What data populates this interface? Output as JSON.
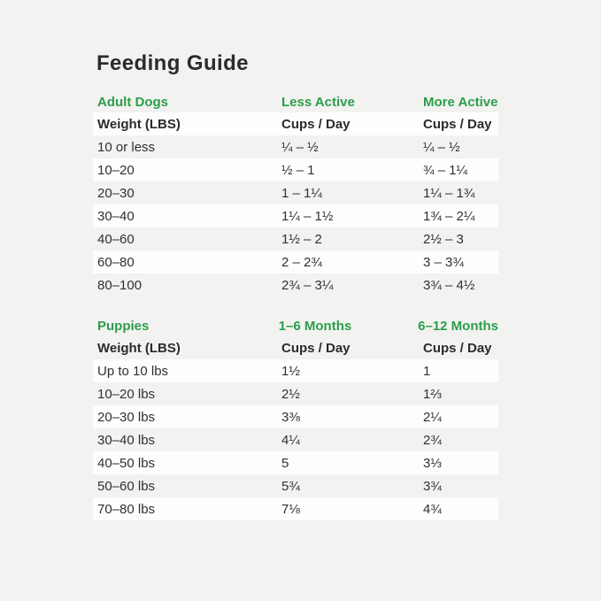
{
  "page": {
    "title": "Feeding Guide",
    "background_color": "#f2f2f1",
    "row_highlight_color": "#fdfdfd",
    "accent_green": "#2c9d4a",
    "text_color": "#303030"
  },
  "tables": [
    {
      "id": "adult-dogs",
      "section_headers": [
        "Adult Dogs",
        "Less Active",
        "More Active"
      ],
      "column_headers": [
        "Weight (LBS)",
        "Cups / Day",
        "Cups / Day"
      ],
      "header_row_white": true,
      "rows": [
        [
          "10 or less",
          "¼ – ½",
          "¼ – ½"
        ],
        [
          "10–20",
          "½ – 1",
          "¾ – 1¼"
        ],
        [
          "20–30",
          "1 – 1¼",
          "1¼ – 1¾"
        ],
        [
          "30–40",
          "1¼ – 1½",
          "1¾ – 2¼"
        ],
        [
          "40–60",
          "1½ – 2",
          "2½ – 3"
        ],
        [
          "60–80",
          "2 – 2¾",
          "3 – 3¾"
        ],
        [
          "80–100",
          "2¾ – 3¼",
          "3¾ – 4½"
        ]
      ]
    },
    {
      "id": "puppies",
      "section_headers": [
        "Puppies",
        "1–6 Months",
        "6–12 Months"
      ],
      "column_headers": [
        "Weight (LBS)",
        "Cups / Day",
        "Cups / Day"
      ],
      "header_row_white": false,
      "rows": [
        [
          "Up to 10 lbs",
          "1½",
          "1"
        ],
        [
          "10–20 lbs",
          "2½",
          "1⅔"
        ],
        [
          "20–30 lbs",
          "3⅜",
          "2¼"
        ],
        [
          "30–40 lbs",
          "4¼",
          "2¾"
        ],
        [
          "40–50 lbs",
          "5",
          "3⅓"
        ],
        [
          "50–60 lbs",
          "5¾",
          "3¾"
        ],
        [
          "70–80 lbs",
          "7⅛",
          "4¾"
        ]
      ]
    }
  ]
}
